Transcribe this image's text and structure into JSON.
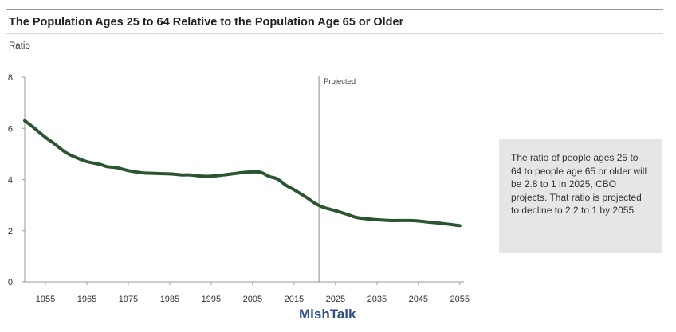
{
  "chart_data": {
    "type": "line",
    "title": "The Population Ages 25 to 64 Relative to the Population Age 65 or Older",
    "ylabel": "Ratio",
    "xlabel": "",
    "xlim": [
      1950,
      2056
    ],
    "ylim": [
      0,
      8
    ],
    "x_ticks": [
      1955,
      1965,
      1975,
      1985,
      1995,
      2005,
      2015,
      2025,
      2035,
      2045,
      2055
    ],
    "y_ticks": [
      0,
      2,
      4,
      6,
      8
    ],
    "grid": false,
    "series": [
      {
        "color": "#2a5530",
        "x": [
          1950,
          1952,
          1955,
          1957,
          1960,
          1963,
          1965,
          1968,
          1970,
          1972,
          1975,
          1978,
          1980,
          1985,
          1988,
          1990,
          1993,
          1995,
          1998,
          2000,
          2003,
          2005,
          2007,
          2009,
          2011,
          2013,
          2015,
          2018,
          2020,
          2022,
          2025,
          2028,
          2030,
          2033,
          2035,
          2038,
          2040,
          2043,
          2045,
          2048,
          2050,
          2053,
          2055
        ],
        "y": [
          6.3,
          6.05,
          5.65,
          5.42,
          5.05,
          4.82,
          4.7,
          4.6,
          4.5,
          4.47,
          4.35,
          4.27,
          4.25,
          4.22,
          4.18,
          4.18,
          4.13,
          4.13,
          4.18,
          4.22,
          4.28,
          4.3,
          4.28,
          4.12,
          4.02,
          3.78,
          3.6,
          3.3,
          3.08,
          2.92,
          2.78,
          2.63,
          2.52,
          2.46,
          2.43,
          2.4,
          2.4,
          2.4,
          2.38,
          2.33,
          2.3,
          2.24,
          2.2
        ]
      }
    ],
    "projection": {
      "x": 2021,
      "label": "Projected"
    }
  },
  "annotation": {
    "text": "The ratio of people ages 25 to 64 to people age 65 or older will be 2.8 to 1 in 2025, CBO projects. That ratio is projected to decline to 2.2 to 1 by 2055."
  },
  "watermark": "MishTalk",
  "colors": {
    "line": "#2a5530",
    "note_bg": "#e6e6e6",
    "watermark": "#2f4f86"
  }
}
